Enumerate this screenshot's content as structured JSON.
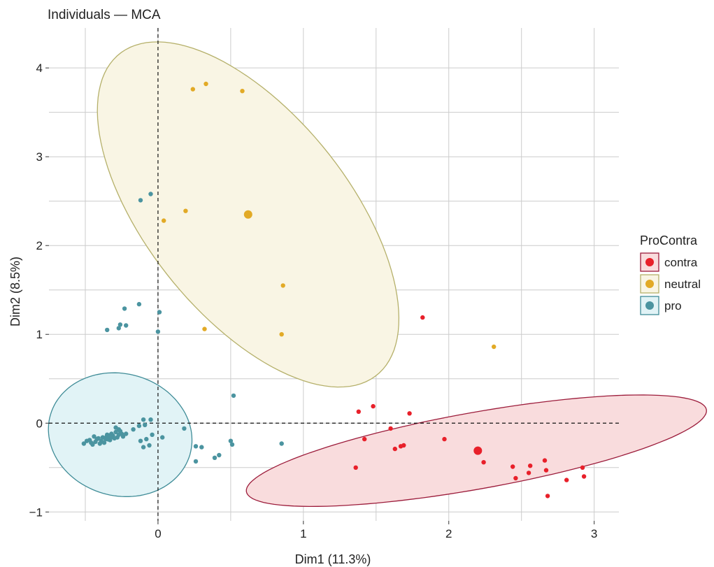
{
  "chart_data": {
    "type": "scatter",
    "title": "Individuals — MCA",
    "xlabel": "Dim1 (11.3%)",
    "ylabel": "Dim2 (8.5%)",
    "xlim": [
      -0.75,
      3.17
    ],
    "ylim": [
      -1.1,
      4.45
    ],
    "x_ticks": [
      0,
      1,
      2,
      3
    ],
    "x_tick_labels": [
      "0",
      "1",
      "2",
      "3"
    ],
    "y_ticks": [
      -1,
      0,
      1,
      2,
      3,
      4
    ],
    "y_tick_labels": [
      "−1",
      "0",
      "1",
      "2",
      "3",
      "4"
    ],
    "grid": true,
    "reference_lines": {
      "x": 0,
      "y": 0
    },
    "legend": {
      "title": "ProContra",
      "placement": "right",
      "entries": [
        "contra",
        "neutral",
        "pro"
      ]
    },
    "colors": {
      "contra": "#e8202a",
      "neutral": "#e2aa26",
      "pro": "#4b94a0",
      "contra_ellipse_fill": "#f9dcdd",
      "contra_ellipse_stroke": "#9c1c3b",
      "neutral_ellipse_fill": "#f9f5e4",
      "neutral_ellipse_stroke": "#b5b06a",
      "pro_ellipse_fill": "#e1f3f6",
      "pro_ellipse_stroke": "#3f8c97"
    },
    "series": [
      {
        "name": "contra",
        "centroid": [
          2.2,
          -0.31
        ],
        "ellipse": {
          "center": [
            2.19,
            -0.31
          ],
          "semi_major": 1.65,
          "semi_minor": 0.42,
          "angle_deg": 17
        },
        "points": [
          [
            1.82,
            1.19
          ],
          [
            1.38,
            0.13
          ],
          [
            1.48,
            0.19
          ],
          [
            1.73,
            0.11
          ],
          [
            1.6,
            -0.06
          ],
          [
            1.42,
            -0.18
          ],
          [
            1.63,
            -0.29
          ],
          [
            1.67,
            -0.26
          ],
          [
            1.69,
            -0.25
          ],
          [
            1.97,
            -0.18
          ],
          [
            1.36,
            -0.5
          ],
          [
            2.24,
            -0.44
          ],
          [
            2.44,
            -0.49
          ],
          [
            2.46,
            -0.62
          ],
          [
            2.56,
            -0.48
          ],
          [
            2.55,
            -0.56
          ],
          [
            2.66,
            -0.42
          ],
          [
            2.67,
            -0.53
          ],
          [
            2.68,
            -0.82
          ],
          [
            2.81,
            -0.64
          ],
          [
            2.92,
            -0.5
          ],
          [
            2.93,
            -0.6
          ]
        ]
      },
      {
        "name": "neutral",
        "centroid": [
          0.62,
          2.35
        ],
        "ellipse": {
          "center": [
            0.62,
            2.35
          ],
          "semi_major": 2.06,
          "semi_minor": 0.78,
          "angle_deg": -69
        },
        "points": [
          [
            0.24,
            3.76
          ],
          [
            0.33,
            3.82
          ],
          [
            0.58,
            3.74
          ],
          [
            0.19,
            2.39
          ],
          [
            0.04,
            2.28
          ],
          [
            0.86,
            1.55
          ],
          [
            0.32,
            1.06
          ],
          [
            0.85,
            1.0
          ],
          [
            2.31,
            0.86
          ]
        ]
      },
      {
        "name": "pro",
        "centroid": [
          -0.34,
          -0.16
        ],
        "ellipse": {
          "center": [
            -0.26,
            -0.13
          ],
          "semi_major": 0.7,
          "semi_minor": 0.49,
          "angle_deg": -83
        },
        "points": [
          [
            -0.05,
            2.58
          ],
          [
            -0.12,
            2.51
          ],
          [
            -0.13,
            1.34
          ],
          [
            -0.23,
            1.29
          ],
          [
            0.01,
            1.25
          ],
          [
            -0.26,
            1.11
          ],
          [
            -0.22,
            1.1
          ],
          [
            -0.27,
            1.07
          ],
          [
            -0.35,
            1.05
          ],
          [
            0.0,
            1.03
          ],
          [
            0.52,
            0.31
          ],
          [
            -0.1,
            0.04
          ],
          [
            -0.05,
            0.04
          ],
          [
            -0.09,
            -0.02
          ],
          [
            -0.13,
            -0.03
          ],
          [
            -0.17,
            -0.07
          ],
          [
            -0.04,
            -0.13
          ],
          [
            0.03,
            -0.16
          ],
          [
            -0.08,
            -0.18
          ],
          [
            -0.12,
            -0.2
          ],
          [
            -0.06,
            -0.25
          ],
          [
            -0.1,
            -0.27
          ],
          [
            0.18,
            -0.06
          ],
          [
            0.26,
            -0.26
          ],
          [
            0.3,
            -0.27
          ],
          [
            0.26,
            -0.43
          ],
          [
            0.39,
            -0.39
          ],
          [
            0.42,
            -0.36
          ],
          [
            0.5,
            -0.2
          ],
          [
            0.51,
            -0.24
          ],
          [
            0.85,
            -0.23
          ],
          [
            -0.27,
            -0.07
          ],
          [
            -0.29,
            -0.1
          ],
          [
            -0.25,
            -0.12
          ],
          [
            -0.31,
            -0.14
          ],
          [
            -0.28,
            -0.16
          ],
          [
            -0.34,
            -0.15
          ],
          [
            -0.36,
            -0.18
          ],
          [
            -0.39,
            -0.2
          ],
          [
            -0.41,
            -0.17
          ],
          [
            -0.43,
            -0.21
          ],
          [
            -0.46,
            -0.22
          ],
          [
            -0.49,
            -0.2
          ],
          [
            -0.45,
            -0.24
          ],
          [
            -0.4,
            -0.23
          ],
          [
            -0.37,
            -0.22
          ],
          [
            -0.33,
            -0.19
          ],
          [
            -0.3,
            -0.17
          ],
          [
            -0.26,
            -0.09
          ],
          [
            -0.22,
            -0.12
          ],
          [
            -0.24,
            -0.15
          ],
          [
            -0.32,
            -0.12
          ],
          [
            -0.35,
            -0.13
          ],
          [
            -0.38,
            -0.16
          ],
          [
            -0.42,
            -0.18
          ],
          [
            -0.47,
            -0.19
          ],
          [
            -0.51,
            -0.23
          ],
          [
            -0.44,
            -0.15
          ],
          [
            -0.29,
            -0.05
          ],
          [
            -0.27,
            -0.13
          ]
        ]
      }
    ]
  }
}
